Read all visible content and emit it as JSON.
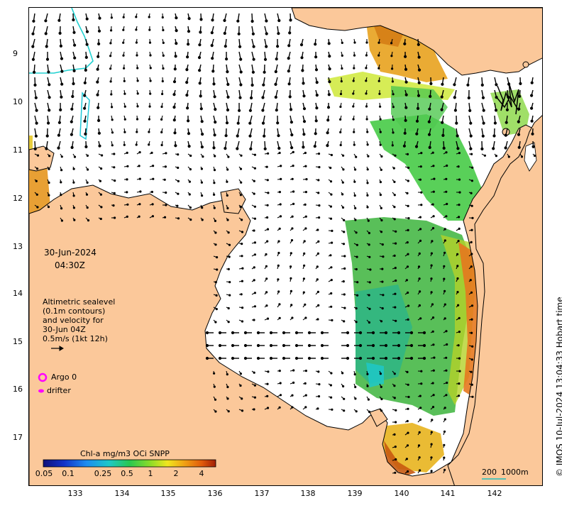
{
  "map": {
    "date_line": "30-Jun-2024",
    "time_line": "04:30Z",
    "legend_lines": [
      "Altimetric sealevel",
      "(0.1m contours)",
      "and velocity for",
      "30-Jun 04Z",
      "0.5m/s (1kt 12h)"
    ],
    "markers": {
      "argo_label": "Argo 0",
      "drifter_label": "drifter"
    },
    "colorbar": {
      "title": "Chl-a mg/m3 OCi SNPP",
      "ticks": [
        "0.05",
        "0.1",
        "0.25",
        "0.5",
        "1",
        "2",
        "4"
      ]
    },
    "scale_bar": {
      "label_a": "200",
      "label_b": "1000m"
    },
    "credit": "© IMOS 10-Jul-2024 13:04:33 Hobart time",
    "axes": {
      "lat_ticks": [
        "9",
        "10",
        "11",
        "12",
        "13",
        "14",
        "15",
        "16",
        "17"
      ],
      "lon_ticks": [
        "133",
        "134",
        "135",
        "136",
        "137",
        "138",
        "139",
        "140",
        "141",
        "142"
      ]
    },
    "colors": {
      "land": "#fbc89a",
      "ocean": "#ffffff",
      "coast": "#000000",
      "argo_marker": "#ff00ff",
      "drifter_marker": "#ff00ff",
      "scale_bar_line": "#20c0c0"
    }
  }
}
